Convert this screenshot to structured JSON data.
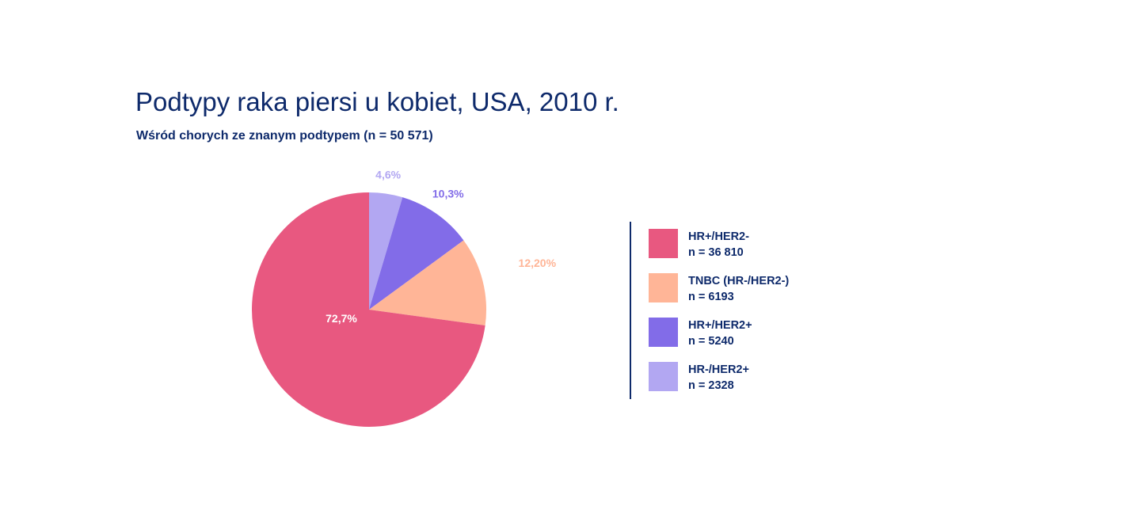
{
  "chart_data": {
    "type": "pie",
    "title": "Podtypy raka piersi u kobiet, USA, 2010 r.",
    "subtitle": "Wśród chorych ze znanym podtypem (n = 50 571)",
    "slices": [
      {
        "name": "HR+/HER2-",
        "count_label": "n = 36 810",
        "value": 72.7,
        "label": "72,7%",
        "color": "#e85880",
        "label_color": "#ffffff"
      },
      {
        "name": "TNBC (HR-/HER2-)",
        "count_label": "n = 6193",
        "value": 12.2,
        "label": "12,20%",
        "color": "#ffb597",
        "label_color": "#ffb597"
      },
      {
        "name": "HR+/HER2+",
        "count_label": "n = 5240",
        "value": 10.3,
        "label": "10,3%",
        "color": "#826ce8",
        "label_color": "#826ce8"
      },
      {
        "name": "HR-/HER2+",
        "count_label": "n = 2328",
        "value": 4.6,
        "label": "4,6%",
        "color": "#b2a7f2",
        "label_color": "#b2a7f2"
      }
    ],
    "legend_position": "right"
  }
}
